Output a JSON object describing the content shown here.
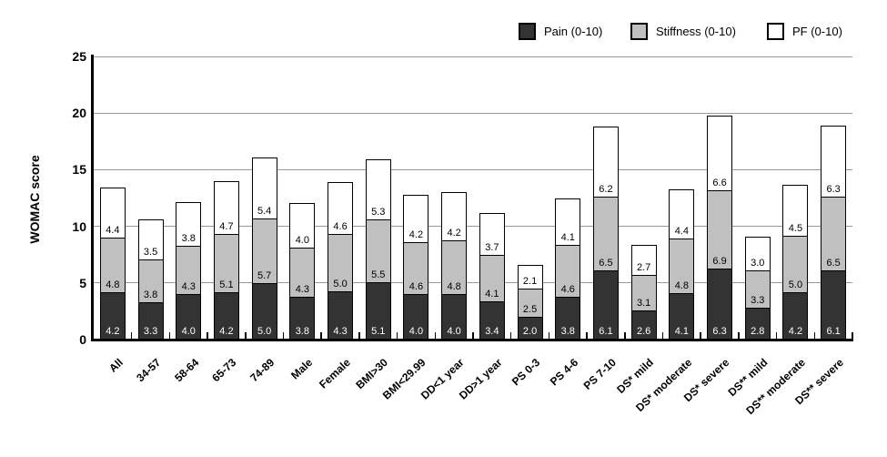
{
  "chart_data": {
    "type": "bar",
    "stacked": true,
    "title": "",
    "ylabel": "WOMAC score",
    "xlabel": "",
    "ylim": [
      0,
      25
    ],
    "yticks": [
      0,
      5,
      10,
      15,
      20,
      25
    ],
    "grid": true,
    "legend_position": "top-right",
    "categories": [
      "All",
      "34-57",
      "58-64",
      "65-73",
      "74-89",
      "Male",
      "Female",
      "BMI>30",
      "BMI<29.99",
      "DD<1 year",
      "DD>1 year",
      "PS 0-3",
      "PS 4-6",
      "PS 7-10",
      "DS* mild",
      "DS* moderate",
      "DS* severe",
      "DS** mild",
      "DS** moderate",
      "DS** severe"
    ],
    "series": [
      {
        "name": "Pain (0-10)",
        "color": "#333333",
        "label_color": "#ffffff",
        "values": [
          4.2,
          3.3,
          4.0,
          4.2,
          5.0,
          3.8,
          4.3,
          5.1,
          4.0,
          4.0,
          3.4,
          2.0,
          3.8,
          6.1,
          2.6,
          4.1,
          6.3,
          2.8,
          4.2,
          6.1
        ]
      },
      {
        "name": "Stiffness (0-10)",
        "color": "#c0c0c0",
        "label_color": "#000000",
        "values": [
          4.8,
          3.8,
          4.3,
          5.1,
          5.7,
          4.3,
          5.0,
          5.5,
          4.6,
          4.8,
          4.1,
          2.5,
          4.6,
          6.5,
          3.1,
          4.8,
          6.9,
          3.3,
          5.0,
          6.5
        ]
      },
      {
        "name": "PF (0-10)",
        "color": "#ffffff",
        "label_color": "#000000",
        "values": [
          4.4,
          3.5,
          3.8,
          4.7,
          5.4,
          4.0,
          4.6,
          5.3,
          4.2,
          4.2,
          3.7,
          2.1,
          4.1,
          6.2,
          2.7,
          4.4,
          6.6,
          3.0,
          4.5,
          6.3
        ]
      }
    ],
    "axis_colors": {
      "axis_line": "#000000",
      "gridline": "#999999"
    }
  }
}
